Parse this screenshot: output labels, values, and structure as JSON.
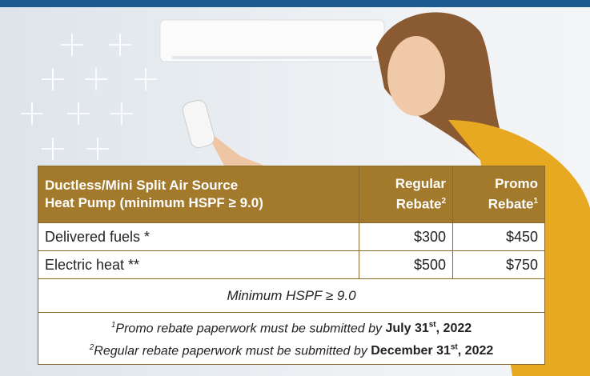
{
  "table": {
    "header": [
      {
        "lines": [
          "Ductless/Mini Split Air Source",
          "Heat Pump (minimum HSPF ≥ 9.0)"
        ]
      },
      {
        "lines": [
          "Regular",
          "Rebate"
        ],
        "sup": "2"
      },
      {
        "lines": [
          "Promo",
          "Rebate"
        ],
        "sup": "1"
      }
    ],
    "rows": [
      [
        "Delivered fuels *",
        "$300",
        "$450"
      ],
      [
        "Electric heat **",
        "$500",
        "$750"
      ]
    ],
    "note": "Minimum HSPF ≥ 9.0",
    "footnotes": [
      {
        "marker": "1",
        "text": "Promo rebate paperwork must be submitted by",
        "date": "July 31",
        "suffix": "st",
        "year": ", 2022"
      },
      {
        "marker": "2",
        "text": "Regular rebate paperwork must be submitted by",
        "date": "December 31",
        "suffix": "st",
        "year": ", 2022"
      }
    ]
  }
}
